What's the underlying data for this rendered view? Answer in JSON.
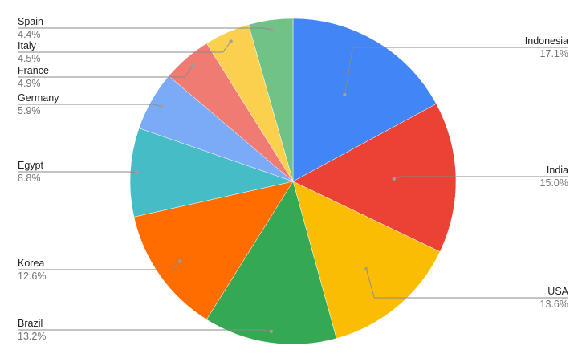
{
  "chart_data": {
    "type": "pie",
    "title": "",
    "legend": "none",
    "start": "top",
    "direction": "clockwise",
    "slices": [
      {
        "label": "Indonesia",
        "pct_text": "17.1%",
        "value": 17.1,
        "color": "#4285F4"
      },
      {
        "label": "India",
        "pct_text": "15.0%",
        "value": 15.0,
        "color": "#EA4335"
      },
      {
        "label": "USA",
        "pct_text": "13.6%",
        "value": 13.6,
        "color": "#FBBC04"
      },
      {
        "label": "Brazil",
        "pct_text": "13.2%",
        "value": 13.2,
        "color": "#34A853"
      },
      {
        "label": "Korea",
        "pct_text": "12.6%",
        "value": 12.6,
        "color": "#FF6D01"
      },
      {
        "label": "Egypt",
        "pct_text": "8.8%",
        "value": 8.8,
        "color": "#46BDC6"
      },
      {
        "label": "Germany",
        "pct_text": "5.9%",
        "value": 5.9,
        "color": "#7BAAF7"
      },
      {
        "label": "France",
        "pct_text": "4.9%",
        "value": 4.9,
        "color": "#F07B72"
      },
      {
        "label": "Italy",
        "pct_text": "4.5%",
        "value": 4.5,
        "color": "#FCD04F"
      },
      {
        "label": "Spain",
        "pct_text": "4.4%",
        "value": 4.4,
        "color": "#71C287"
      }
    ]
  }
}
